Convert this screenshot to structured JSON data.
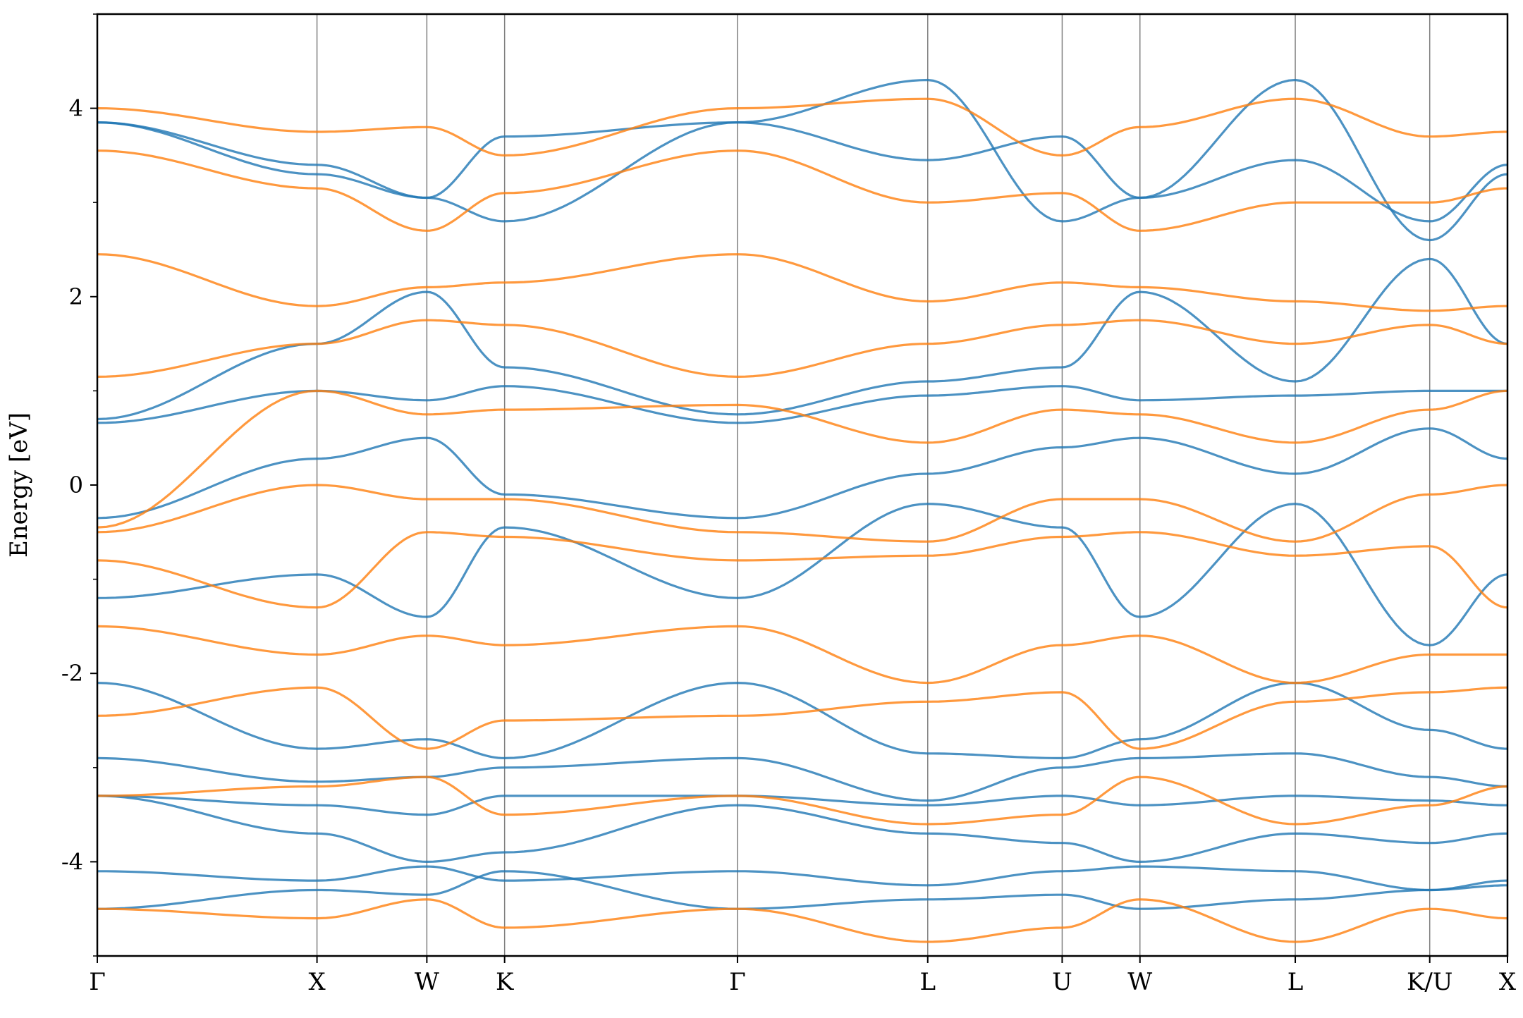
{
  "chart_data": {
    "type": "line",
    "title": "",
    "xlabel": "",
    "ylabel": "Energy [eV]",
    "ylim": [
      -5,
      5
    ],
    "y_ticks": [
      -4,
      -2,
      0,
      2,
      4
    ],
    "y_minor_ticks": [
      -5,
      -3,
      -1,
      1,
      3,
      5
    ],
    "grid": false,
    "legend": "none",
    "x_ticks": [
      {
        "label": "Γ",
        "x": 0.0
      },
      {
        "label": "X",
        "x": 1.0
      },
      {
        "label": "W",
        "x": 1.5
      },
      {
        "label": "K",
        "x": 1.854
      },
      {
        "label": "Γ",
        "x": 2.914
      },
      {
        "label": "L",
        "x": 3.78
      },
      {
        "label": "U",
        "x": 4.392
      },
      {
        "label": "W",
        "x": 4.746
      },
      {
        "label": "L",
        "x": 5.453
      },
      {
        "label": "K/U",
        "x": 6.065
      },
      {
        "label": "X",
        "x": 6.419
      }
    ],
    "series": [
      {
        "color": "#1f77b4",
        "bands": [
          [
            [
              0,
              -3.3
            ],
            [
              1.0,
              -3.4
            ],
            [
              1.5,
              -3.5
            ],
            [
              1.854,
              -3.3
            ],
            [
              2.914,
              -3.3
            ],
            [
              3.78,
              -3.4
            ],
            [
              4.392,
              -3.3
            ],
            [
              4.746,
              -3.4
            ],
            [
              5.453,
              -3.3
            ],
            [
              6.065,
              -3.35
            ],
            [
              6.419,
              -3.4
            ]
          ],
          [
            [
              0,
              -3.3
            ],
            [
              1.0,
              -3.7
            ],
            [
              1.5,
              -4.0
            ],
            [
              1.854,
              -3.9
            ],
            [
              2.914,
              -3.4
            ],
            [
              3.78,
              -3.7
            ],
            [
              4.392,
              -3.8
            ],
            [
              4.746,
              -4.0
            ],
            [
              5.453,
              -3.7
            ],
            [
              6.065,
              -3.8
            ],
            [
              6.419,
              -3.7
            ]
          ],
          [
            [
              0,
              -2.9
            ],
            [
              1.0,
              -3.15
            ],
            [
              1.5,
              -3.1
            ],
            [
              1.854,
              -3.0
            ],
            [
              2.914,
              -2.9
            ],
            [
              3.78,
              -3.35
            ],
            [
              4.392,
              -3.0
            ],
            [
              4.746,
              -2.9
            ],
            [
              5.453,
              -2.85
            ],
            [
              6.065,
              -3.1
            ],
            [
              6.419,
              -3.2
            ]
          ],
          [
            [
              0,
              -2.1
            ],
            [
              1.0,
              -2.8
            ],
            [
              1.5,
              -2.7
            ],
            [
              1.854,
              -2.9
            ],
            [
              2.914,
              -2.1
            ],
            [
              3.78,
              -2.85
            ],
            [
              4.392,
              -2.9
            ],
            [
              4.746,
              -2.7
            ],
            [
              5.453,
              -2.1
            ],
            [
              6.065,
              -2.6
            ],
            [
              6.419,
              -2.8
            ]
          ],
          [
            [
              0,
              -4.1
            ],
            [
              1.0,
              -4.2
            ],
            [
              1.5,
              -4.05
            ],
            [
              1.854,
              -4.2
            ],
            [
              2.914,
              -4.1
            ],
            [
              3.78,
              -4.25
            ],
            [
              4.392,
              -4.1
            ],
            [
              4.746,
              -4.05
            ],
            [
              5.453,
              -4.1
            ],
            [
              6.065,
              -4.3
            ],
            [
              6.419,
              -4.2
            ]
          ],
          [
            [
              0,
              -4.5
            ],
            [
              1.0,
              -4.3
            ],
            [
              1.5,
              -4.35
            ],
            [
              1.854,
              -4.1
            ],
            [
              2.914,
              -4.5
            ],
            [
              3.78,
              -4.4
            ],
            [
              4.392,
              -4.35
            ],
            [
              4.746,
              -4.5
            ],
            [
              5.453,
              -4.4
            ],
            [
              6.065,
              -4.3
            ],
            [
              6.419,
              -4.25
            ]
          ],
          [
            [
              0,
              -1.2
            ],
            [
              1.0,
              -0.95
            ],
            [
              1.5,
              -1.4
            ],
            [
              1.854,
              -0.45
            ],
            [
              2.914,
              -1.2
            ],
            [
              3.78,
              -0.2
            ],
            [
              4.392,
              -0.45
            ],
            [
              4.746,
              -1.4
            ],
            [
              5.453,
              -0.2
            ],
            [
              6.065,
              -1.7
            ],
            [
              6.419,
              -0.95
            ]
          ],
          [
            [
              0,
              -0.35
            ],
            [
              1.0,
              0.28
            ],
            [
              1.5,
              0.5
            ],
            [
              1.854,
              -0.1
            ],
            [
              2.914,
              -0.35
            ],
            [
              3.78,
              0.12
            ],
            [
              4.392,
              0.4
            ],
            [
              4.746,
              0.5
            ],
            [
              5.453,
              0.12
            ],
            [
              6.065,
              0.6
            ],
            [
              6.419,
              0.28
            ]
          ],
          [
            [
              0,
              0.66
            ],
            [
              1.0,
              1.0
            ],
            [
              1.5,
              0.9
            ],
            [
              1.854,
              1.05
            ],
            [
              2.914,
              0.66
            ],
            [
              3.78,
              0.95
            ],
            [
              4.392,
              1.05
            ],
            [
              4.746,
              0.9
            ],
            [
              5.453,
              0.95
            ],
            [
              6.065,
              1.0
            ],
            [
              6.419,
              1.0
            ]
          ],
          [
            [
              0,
              0.7
            ],
            [
              1.0,
              1.5
            ],
            [
              1.5,
              2.05
            ],
            [
              1.854,
              1.25
            ],
            [
              2.914,
              0.75
            ],
            [
              3.78,
              1.1
            ],
            [
              4.392,
              1.25
            ],
            [
              4.746,
              2.05
            ],
            [
              5.453,
              1.1
            ],
            [
              6.065,
              2.4
            ],
            [
              6.419,
              1.5
            ]
          ],
          [
            [
              0,
              3.85
            ],
            [
              1.0,
              3.4
            ],
            [
              1.5,
              3.05
            ],
            [
              1.854,
              3.7
            ],
            [
              2.914,
              3.85
            ],
            [
              3.78,
              3.45
            ],
            [
              4.392,
              3.7
            ],
            [
              4.746,
              3.05
            ],
            [
              5.453,
              3.45
            ],
            [
              6.065,
              2.8
            ],
            [
              6.419,
              3.4
            ]
          ],
          [
            [
              0,
              3.85
            ],
            [
              1.0,
              3.3
            ],
            [
              1.5,
              3.05
            ],
            [
              1.854,
              2.8
            ],
            [
              2.914,
              3.85
            ],
            [
              3.78,
              4.3
            ],
            [
              4.392,
              2.8
            ],
            [
              4.746,
              3.05
            ],
            [
              5.453,
              4.3
            ],
            [
              6.065,
              2.6
            ],
            [
              6.419,
              3.3
            ]
          ]
        ]
      },
      {
        "color": "#ff7f0e",
        "bands": [
          [
            [
              0,
              4.0
            ],
            [
              1.0,
              3.75
            ],
            [
              1.5,
              3.8
            ],
            [
              1.854,
              3.5
            ],
            [
              2.914,
              4.0
            ],
            [
              3.78,
              4.1
            ],
            [
              4.392,
              3.5
            ],
            [
              4.746,
              3.8
            ],
            [
              5.453,
              4.1
            ],
            [
              6.065,
              3.7
            ],
            [
              6.419,
              3.75
            ]
          ],
          [
            [
              0,
              3.55
            ],
            [
              1.0,
              3.15
            ],
            [
              1.5,
              2.7
            ],
            [
              1.854,
              3.1
            ],
            [
              2.914,
              3.55
            ],
            [
              3.78,
              3.0
            ],
            [
              4.392,
              3.1
            ],
            [
              4.746,
              2.7
            ],
            [
              5.453,
              3.0
            ],
            [
              6.065,
              3.0
            ],
            [
              6.419,
              3.15
            ]
          ],
          [
            [
              0,
              2.45
            ],
            [
              1.0,
              1.9
            ],
            [
              1.5,
              2.1
            ],
            [
              1.854,
              2.15
            ],
            [
              2.914,
              2.45
            ],
            [
              3.78,
              1.95
            ],
            [
              4.392,
              2.15
            ],
            [
              4.746,
              2.1
            ],
            [
              5.453,
              1.95
            ],
            [
              6.065,
              1.85
            ],
            [
              6.419,
              1.9
            ]
          ],
          [
            [
              0,
              1.15
            ],
            [
              1.0,
              1.5
            ],
            [
              1.5,
              1.75
            ],
            [
              1.854,
              1.7
            ],
            [
              2.914,
              1.15
            ],
            [
              3.78,
              1.5
            ],
            [
              4.392,
              1.7
            ],
            [
              4.746,
              1.75
            ],
            [
              5.453,
              1.5
            ],
            [
              6.065,
              1.7
            ],
            [
              6.419,
              1.5
            ]
          ],
          [
            [
              0,
              -0.5
            ],
            [
              1.0,
              0.0
            ],
            [
              1.5,
              -0.15
            ],
            [
              1.854,
              -0.15
            ],
            [
              2.914,
              -0.5
            ],
            [
              3.78,
              -0.6
            ],
            [
              4.392,
              -0.15
            ],
            [
              4.746,
              -0.15
            ],
            [
              5.453,
              -0.6
            ],
            [
              6.065,
              -0.1
            ],
            [
              6.419,
              0.0
            ]
          ],
          [
            [
              0,
              -0.45
            ],
            [
              1.0,
              1.0
            ],
            [
              1.5,
              0.75
            ],
            [
              1.854,
              0.8
            ],
            [
              2.914,
              0.85
            ],
            [
              3.78,
              0.45
            ],
            [
              4.392,
              0.8
            ],
            [
              4.746,
              0.75
            ],
            [
              5.453,
              0.45
            ],
            [
              6.065,
              0.8
            ],
            [
              6.419,
              1.0
            ]
          ],
          [
            [
              0,
              -0.8
            ],
            [
              1.0,
              -1.3
            ],
            [
              1.5,
              -0.5
            ],
            [
              1.854,
              -0.55
            ],
            [
              2.914,
              -0.8
            ],
            [
              3.78,
              -0.75
            ],
            [
              4.392,
              -0.55
            ],
            [
              4.746,
              -0.5
            ],
            [
              5.453,
              -0.75
            ],
            [
              6.065,
              -0.65
            ],
            [
              6.419,
              -1.3
            ]
          ],
          [
            [
              0,
              -1.5
            ],
            [
              1.0,
              -1.8
            ],
            [
              1.5,
              -1.6
            ],
            [
              1.854,
              -1.7
            ],
            [
              2.914,
              -1.5
            ],
            [
              3.78,
              -2.1
            ],
            [
              4.392,
              -1.7
            ],
            [
              4.746,
              -1.6
            ],
            [
              5.453,
              -2.1
            ],
            [
              6.065,
              -1.8
            ],
            [
              6.419,
              -1.8
            ]
          ],
          [
            [
              0,
              -2.45
            ],
            [
              1.0,
              -2.15
            ],
            [
              1.5,
              -2.8
            ],
            [
              1.854,
              -2.5
            ],
            [
              2.914,
              -2.45
            ],
            [
              3.78,
              -2.3
            ],
            [
              4.392,
              -2.2
            ],
            [
              4.746,
              -2.8
            ],
            [
              5.453,
              -2.3
            ],
            [
              6.065,
              -2.2
            ],
            [
              6.419,
              -2.15
            ]
          ],
          [
            [
              0,
              -3.3
            ],
            [
              1.0,
              -3.2
            ],
            [
              1.5,
              -3.1
            ],
            [
              1.854,
              -3.5
            ],
            [
              2.914,
              -3.3
            ],
            [
              3.78,
              -3.6
            ],
            [
              4.392,
              -3.5
            ],
            [
              4.746,
              -3.1
            ],
            [
              5.453,
              -3.6
            ],
            [
              6.065,
              -3.4
            ],
            [
              6.419,
              -3.2
            ]
          ],
          [
            [
              0,
              -4.5
            ],
            [
              1.0,
              -4.6
            ],
            [
              1.5,
              -4.4
            ],
            [
              1.854,
              -4.7
            ],
            [
              2.914,
              -4.5
            ],
            [
              3.78,
              -4.85
            ],
            [
              4.392,
              -4.7
            ],
            [
              4.746,
              -4.4
            ],
            [
              5.453,
              -4.85
            ],
            [
              6.065,
              -4.5
            ],
            [
              6.419,
              -4.6
            ]
          ]
        ]
      }
    ]
  }
}
